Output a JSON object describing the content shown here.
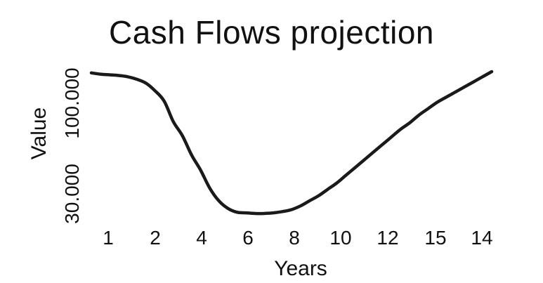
{
  "chart_data": {
    "type": "line",
    "title": "Cash Flows projection",
    "xlabel": "Years",
    "ylabel": "Value",
    "x_tick_labels": [
      "1",
      "2",
      "4",
      "6",
      "8",
      "10",
      "12",
      "15",
      "14"
    ],
    "y_tick_labels": [
      "30.000",
      "100.000"
    ],
    "grid": false,
    "legend": "none",
    "line_color": "#1a1a1a",
    "series": [
      {
        "values": [
          128,
          127,
          126.5,
          126,
          125,
          123,
          120,
          114,
          106,
          90,
          79,
          64,
          52,
          38,
          28,
          22,
          19,
          18.5,
          18,
          18,
          18.5,
          19.5,
          21,
          24,
          28,
          32,
          37,
          42,
          48,
          54,
          60,
          66,
          72,
          78,
          84,
          89,
          95,
          100,
          105,
          109,
          113,
          117,
          121,
          125,
          129
        ]
      }
    ]
  }
}
